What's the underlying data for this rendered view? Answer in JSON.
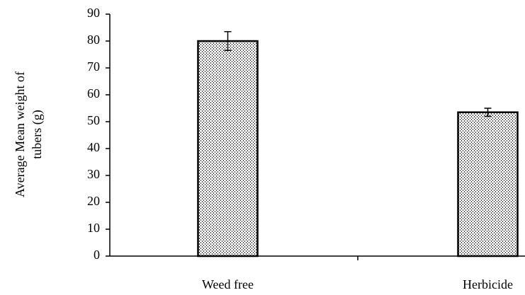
{
  "chart_data": {
    "type": "bar",
    "ylabel": [
      "Average Mean weight of",
      "tubers (g)"
    ],
    "categories": [
      "Weed free",
      "Herbicide"
    ],
    "values": [
      80,
      53.5
    ],
    "errors": [
      3.5,
      1.5
    ],
    "ylim": [
      0,
      90
    ],
    "yticks": [
      0,
      10,
      20,
      30,
      40,
      50,
      60,
      70,
      80,
      90
    ],
    "grid": false
  }
}
